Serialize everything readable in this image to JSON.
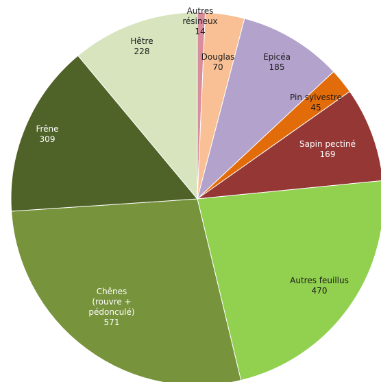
{
  "chart_data": {
    "type": "pie",
    "start_angle_deg": 0,
    "direction": "clockwise",
    "title": "",
    "legend": "none",
    "slices": [
      {
        "label": "Autres résineux",
        "value": 14,
        "color": "#d98c9c",
        "text_color": "#1a1a1a"
      },
      {
        "label": "Douglas",
        "value": 70,
        "color": "#f9c095",
        "text_color": "#1a1a1a"
      },
      {
        "label": "Epicéa",
        "value": 185,
        "color": "#b3a2cc",
        "text_color": "#1a1a1a"
      },
      {
        "label": "Pin sylvestre",
        "value": 45,
        "color": "#e36c0a",
        "text_color": "#1a1a1a"
      },
      {
        "label": "Sapin pectiné",
        "value": 169,
        "color": "#953735",
        "text_color": "#ffffff"
      },
      {
        "label": "Autres feuillus",
        "value": 470,
        "color": "#92d050",
        "text_color": "#1a1a1a"
      },
      {
        "label": "Chênes (rouvre + pédonculé)",
        "value": 571,
        "color": "#77933c",
        "text_color": "#ffffff"
      },
      {
        "label": "Frêne",
        "value": 309,
        "color": "#4f6228",
        "text_color": "#ffffff"
      },
      {
        "label": "Hêtre",
        "value": 228,
        "color": "#d7e4bd",
        "text_color": "#1a1a1a"
      }
    ]
  }
}
